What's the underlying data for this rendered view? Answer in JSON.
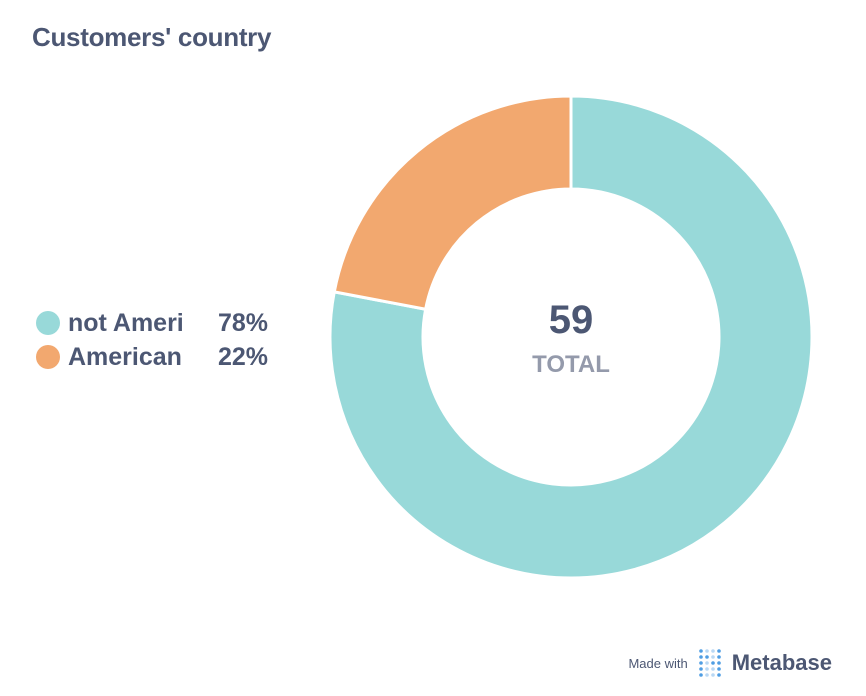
{
  "title": "Customers' country",
  "center": {
    "value": "59",
    "label": "TOTAL"
  },
  "chart_data": {
    "type": "pie",
    "title": "Customers' country",
    "total": 59,
    "slices": [
      {
        "label": "not American",
        "display_label": "not Ameri",
        "percent": "78%",
        "value": 0.78,
        "color": "#98d9d9"
      },
      {
        "label": "American",
        "display_label": "American",
        "percent": "22%",
        "value": 0.22,
        "color": "#f2a86f"
      }
    ],
    "legend_placement": "left"
  },
  "footer": {
    "made_with": "Made with",
    "brand": "Metabase"
  }
}
